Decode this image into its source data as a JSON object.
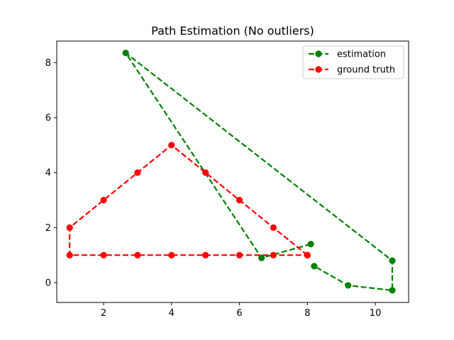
{
  "chart_data": {
    "type": "line",
    "title": "Path Estimation (No outliers)",
    "xlabel": "",
    "ylabel": "",
    "xlim": [
      0.62,
      10.98
    ],
    "ylim": [
      -0.72,
      8.78
    ],
    "xticks": [
      2,
      4,
      6,
      8,
      10
    ],
    "yticks": [
      0,
      2,
      4,
      6,
      8
    ],
    "grid": false,
    "legend_position": "upper right",
    "series": [
      {
        "name": "estimation",
        "color": "#008000",
        "style": "dashed",
        "marker": "circle",
        "x": [
          8.1,
          6.65,
          2.65,
          10.5,
          10.5,
          9.2,
          8.2
        ],
        "y": [
          1.4,
          0.9,
          8.35,
          0.8,
          -0.28,
          -0.1,
          0.6
        ]
      },
      {
        "name": "ground truth",
        "color": "#ff0000",
        "style": "dashed",
        "marker": "circle",
        "x": [
          8,
          7,
          6,
          5,
          4,
          3,
          2,
          1,
          1,
          2,
          3,
          4,
          5,
          6,
          7,
          8
        ],
        "y": [
          1,
          2,
          3,
          4,
          5,
          4,
          3,
          2,
          1,
          1,
          1,
          1,
          1,
          1,
          1,
          1
        ]
      }
    ]
  }
}
